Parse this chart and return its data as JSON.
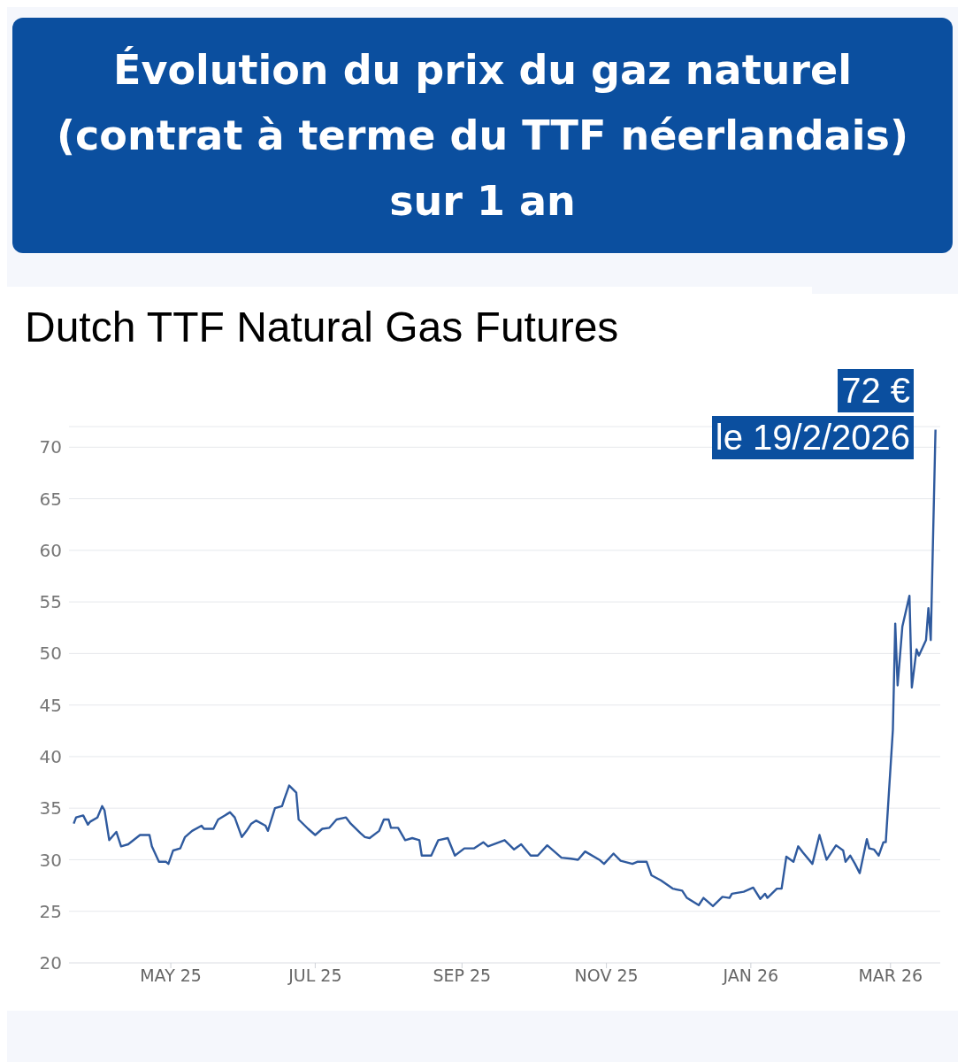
{
  "chart_data": {
    "type": "line",
    "title": "Évolution du prix du gaz naturel (contrat à terme du TTF néerlandais) sur 1 an",
    "subtitle": "Dutch TTF Natural Gas Futures",
    "annotations": [
      "72 €",
      "le 19/2/2026"
    ],
    "x": [
      "2025-03-21",
      "2025-03-22",
      "2025-03-25",
      "2025-03-27",
      "2025-03-28",
      "2025-03-31",
      "2025-04-02",
      "2025-04-03",
      "2025-04-05",
      "2025-04-08",
      "2025-04-10",
      "2025-04-13",
      "2025-04-18",
      "2025-04-22",
      "2025-04-23",
      "2025-04-26",
      "2025-04-29",
      "2025-04-30",
      "2025-05-02",
      "2025-05-05",
      "2025-05-07",
      "2025-05-10",
      "2025-05-14",
      "2025-05-15",
      "2025-05-19",
      "2025-05-21",
      "2025-05-26",
      "2025-05-28",
      "2025-05-31",
      "2025-06-02",
      "2025-06-04",
      "2025-06-06",
      "2025-06-10",
      "2025-06-11",
      "2025-06-14",
      "2025-06-17",
      "2025-06-18",
      "2025-06-20",
      "2025-06-23",
      "2025-06-24",
      "2025-06-28",
      "2025-07-01",
      "2025-07-04",
      "2025-07-07",
      "2025-07-10",
      "2025-07-14",
      "2025-07-16",
      "2025-07-20",
      "2025-07-22",
      "2025-07-24",
      "2025-07-28",
      "2025-07-30",
      "2025-08-01",
      "2025-08-02",
      "2025-08-05",
      "2025-08-08",
      "2025-08-11",
      "2025-08-14",
      "2025-08-15",
      "2025-08-19",
      "2025-08-22",
      "2025-08-26",
      "2025-08-29",
      "2025-09-02",
      "2025-09-06",
      "2025-09-10",
      "2025-09-12",
      "2025-09-19",
      "2025-09-23",
      "2025-09-26",
      "2025-09-30",
      "2025-10-03",
      "2025-10-07",
      "2025-10-13",
      "2025-10-17",
      "2025-10-20",
      "2025-10-23",
      "2025-10-29",
      "2025-10-31",
      "2025-11-04",
      "2025-11-07",
      "2025-11-12",
      "2025-11-14",
      "2025-11-18",
      "2025-11-20",
      "2025-11-24",
      "2025-11-29",
      "2025-12-03",
      "2025-12-05",
      "2025-12-10",
      "2025-12-12",
      "2025-12-16",
      "2025-12-20",
      "2025-12-23",
      "2025-12-24",
      "2025-12-29",
      "2026-01-02",
      "2026-01-05",
      "2026-01-07",
      "2026-01-08",
      "2026-01-12",
      "2026-01-14",
      "2026-01-16",
      "2026-01-19",
      "2026-01-21",
      "2026-01-23",
      "2026-01-27",
      "2026-01-30",
      "2026-02-02",
      "2026-02-06",
      "2026-02-09",
      "2026-02-10",
      "2026-02-12",
      "2026-02-14",
      "2026-02-16",
      "2026-02-19",
      "2026-02-20",
      "2026-02-22",
      "2026-02-24",
      "2026-02-26",
      "2026-02-27",
      "2026-03-02",
      "2026-03-03",
      "2026-03-04",
      "2026-03-06",
      "2026-03-09",
      "2026-03-10",
      "2026-03-12",
      "2026-03-13",
      "2026-03-16",
      "2026-03-17",
      "2026-03-18",
      "2026-03-20"
    ],
    "series": [
      {
        "color": "#2f5a9e",
        "values": [
          33.5,
          34.1,
          34.3,
          33.4,
          33.7,
          34.1,
          35.2,
          34.8,
          31.9,
          32.7,
          31.3,
          31.5,
          32.4,
          32.4,
          31.3,
          29.8,
          29.8,
          29.6,
          30.9,
          31.1,
          32.2,
          32.8,
          33.3,
          33.0,
          33.0,
          33.9,
          34.6,
          34.1,
          32.2,
          32.8,
          33.5,
          33.8,
          33.3,
          32.8,
          35.0,
          35.2,
          35.9,
          37.2,
          36.5,
          33.9,
          33.0,
          32.4,
          33.0,
          33.1,
          33.9,
          34.1,
          33.5,
          32.6,
          32.2,
          32.1,
          32.8,
          33.9,
          33.9,
          33.1,
          33.1,
          31.9,
          32.1,
          31.9,
          30.4,
          30.4,
          31.9,
          32.1,
          30.4,
          31.1,
          31.1,
          31.7,
          31.3,
          31.9,
          31.0,
          31.5,
          30.4,
          30.4,
          31.4,
          30.2,
          30.1,
          30.0,
          30.8,
          30.0,
          29.6,
          30.6,
          29.9,
          29.6,
          29.8,
          29.8,
          28.5,
          28.0,
          27.2,
          27.0,
          26.3,
          25.6,
          26.3,
          25.5,
          26.4,
          26.3,
          26.7,
          26.9,
          27.3,
          26.2,
          26.7,
          26.3,
          27.2,
          27.2,
          30.3,
          29.8,
          31.3,
          30.7,
          29.6,
          32.4,
          30.0,
          31.4,
          30.9,
          29.8,
          30.4,
          29.6,
          28.7,
          32.0,
          31.1,
          31.0,
          30.4,
          31.7,
          31.7,
          42.6,
          52.9,
          46.9,
          52.6,
          55.6,
          46.7,
          50.4,
          49.8,
          51.3,
          54.4,
          51.3,
          71.7
        ]
      }
    ],
    "xlim": [
      "2025-03-19",
      "2026-03-22"
    ],
    "xticks": [
      {
        "value": "2025-05-01",
        "label": "MAY 25"
      },
      {
        "value": "2025-07-01",
        "label": "JUL 25"
      },
      {
        "value": "2025-09-01",
        "label": "SEP 25"
      },
      {
        "value": "2025-11-01",
        "label": "NOV 25"
      },
      {
        "value": "2026-01-01",
        "label": "JAN 26"
      },
      {
        "value": "2026-03-01",
        "label": "MAR 26"
      }
    ],
    "ylim": [
      20,
      72
    ],
    "yticks": [
      20,
      25,
      30,
      35,
      40,
      45,
      50,
      55,
      60,
      65,
      70
    ],
    "grid": "y",
    "marker": "none",
    "line_style": "solid"
  }
}
